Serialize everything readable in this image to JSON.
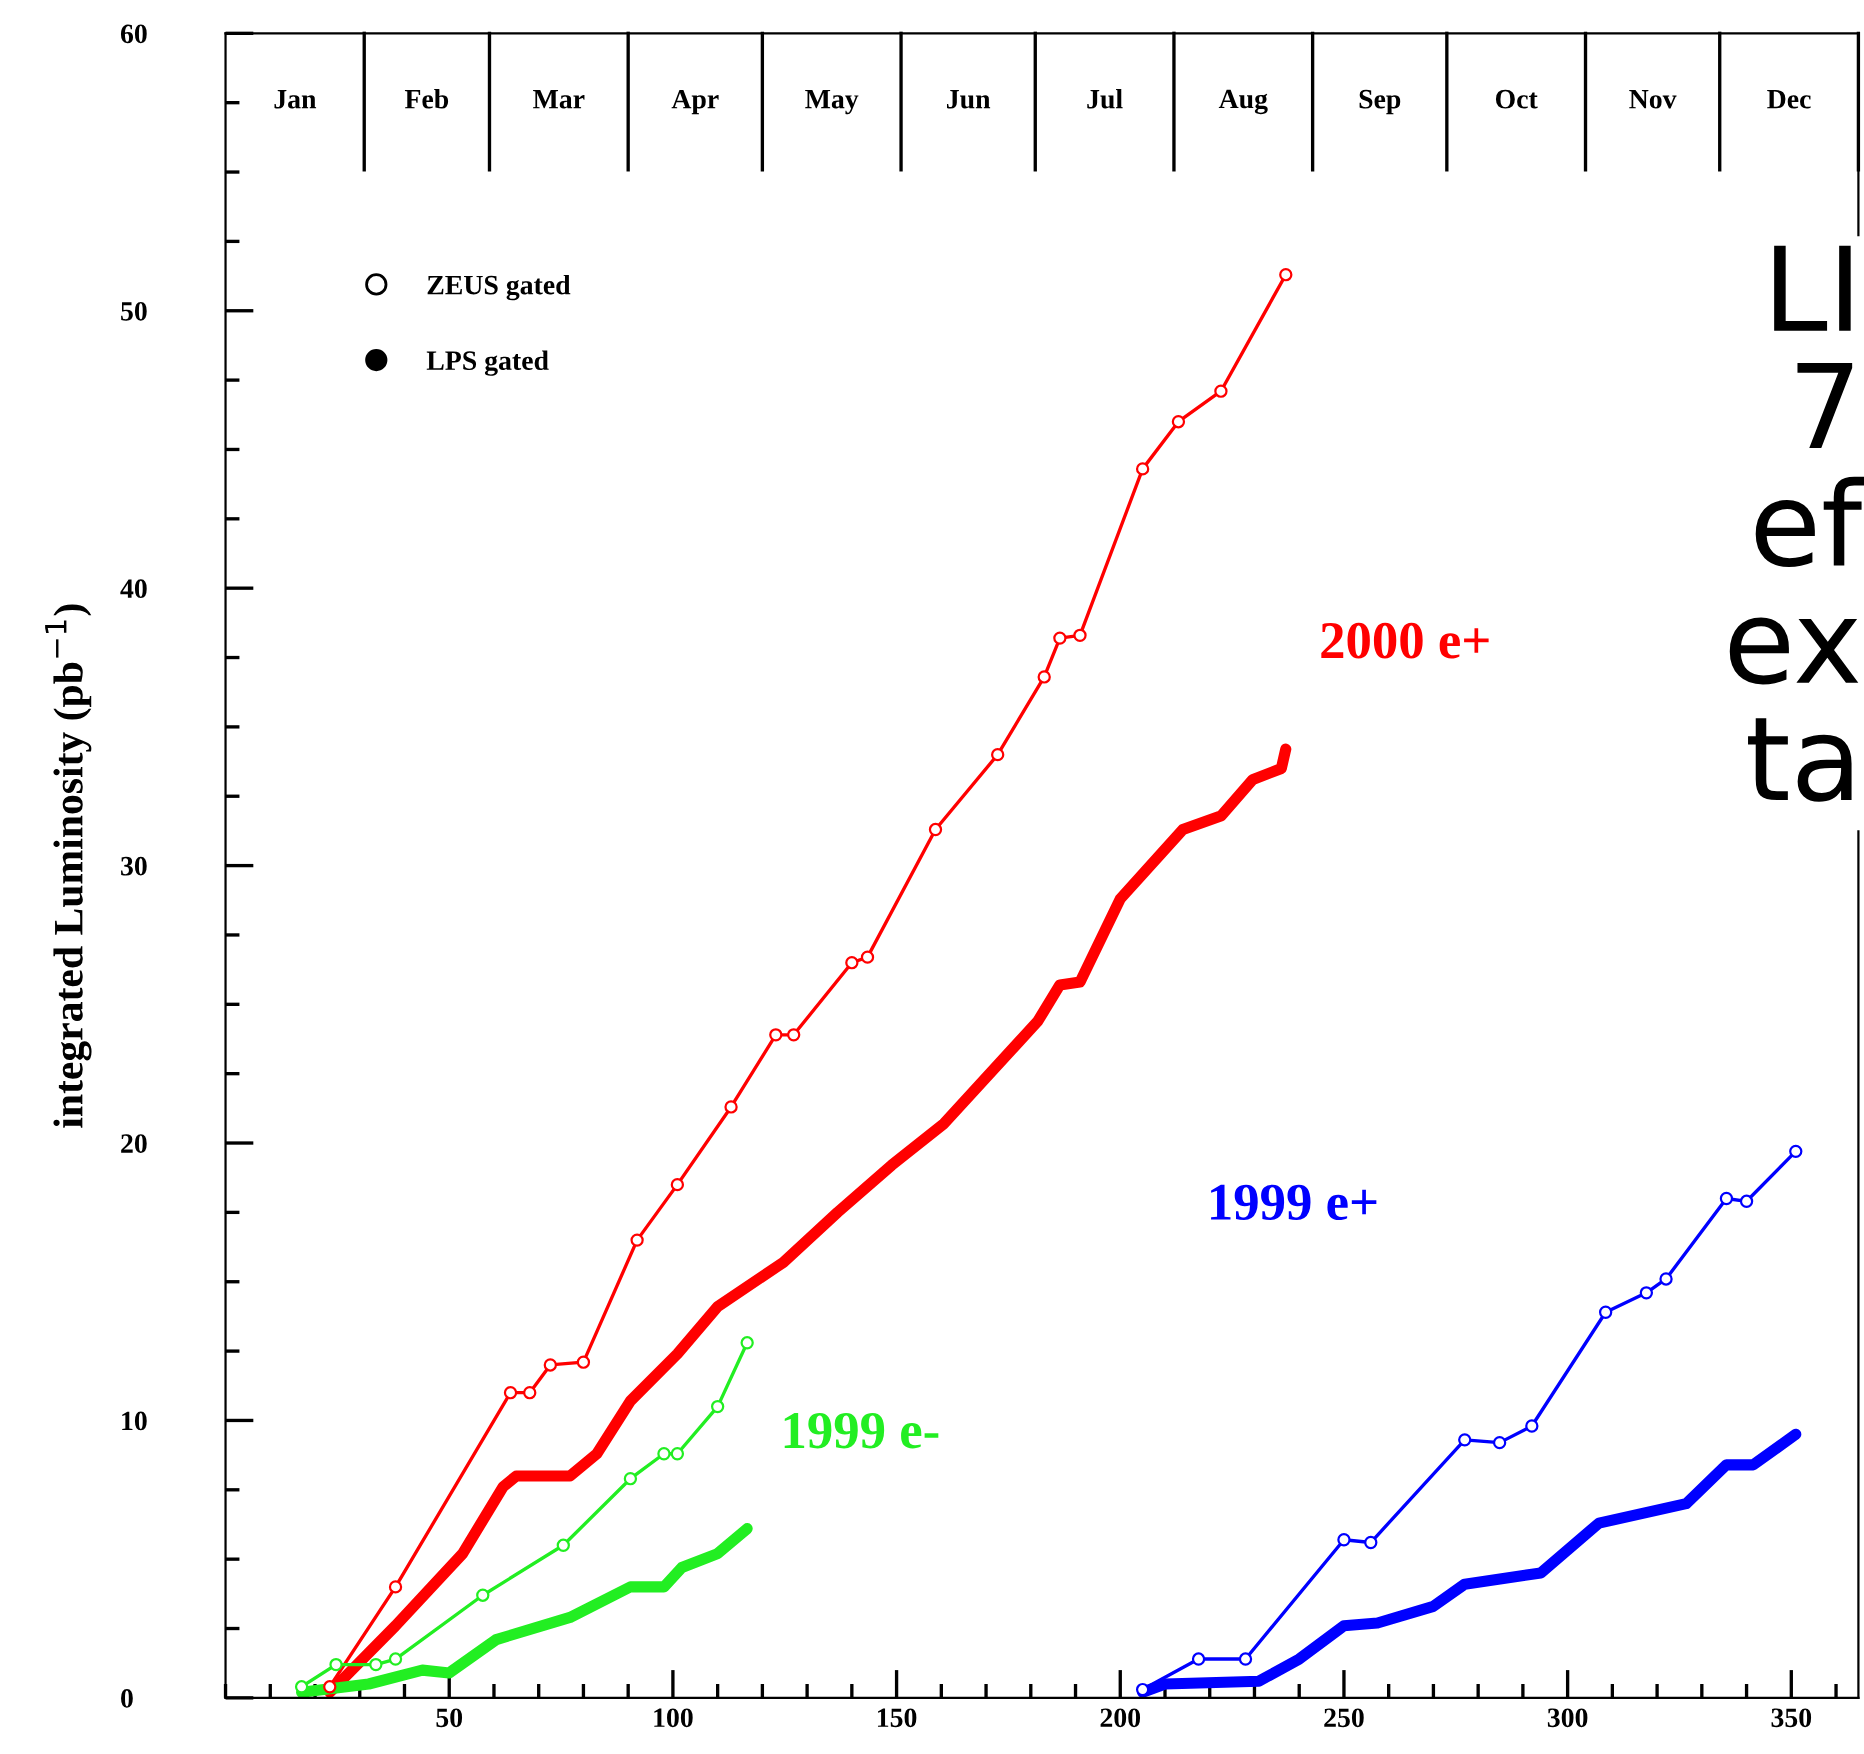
{
  "chart_data": {
    "type": "line",
    "ylabel": "integrated Luminosity (pb$^{−1}$)",
    "xlim": [
      0,
      365
    ],
    "xticks": [
      50,
      100,
      150,
      200,
      250,
      300,
      350
    ],
    "ylim": [
      0,
      60
    ],
    "yticks": [
      0,
      10,
      20,
      30,
      40,
      50,
      60
    ],
    "ref_lines": [
      {
        "axis": "x",
        "value": 31,
        "label": "Jan"
      },
      {
        "axis": "x",
        "value": 59,
        "label": "Feb"
      },
      {
        "axis": "x",
        "value": 90,
        "label": "Mar"
      },
      {
        "axis": "x",
        "value": 120,
        "label": "Apr"
      },
      {
        "axis": "x",
        "value": 151,
        "label": "May"
      },
      {
        "axis": "x",
        "value": 181,
        "label": "Jun"
      },
      {
        "axis": "x",
        "value": 212,
        "label": "Jul"
      },
      {
        "axis": "x",
        "value": 243,
        "label": "Aug"
      },
      {
        "axis": "x",
        "value": 273,
        "label": "Sep"
      },
      {
        "axis": "x",
        "value": 304,
        "label": "Oct"
      },
      {
        "axis": "x",
        "value": 334,
        "label": "Nov"
      },
      {
        "axis": "x",
        "value": 365,
        "label": "Dec"
      }
    ],
    "grid": false,
    "legend": "top left",
    "series": [
      {
        "name": "ZEUS gated",
        "type": "line",
        "marker": "circle",
        "color": "#000000"
      },
      {
        "name": "LPS gated",
        "type": "scatter",
        "marker": "circle",
        "color": "#000000"
      },
      {
        "name": "2000 e+",
        "marker": "circle",
        "color": "#ff0000",
        "x": [
          23.3,
          38,
          63.7,
          68,
          72.6,
          80,
          92,
          101,
          113,
          123,
          127,
          140,
          143.5,
          158.7,
          172.6,
          183,
          186.5,
          191,
          205,
          213,
          222.5,
          237
        ],
        "values": [
          0.4,
          4.0,
          11.0,
          11.0,
          12.0,
          12.1,
          16.5,
          18.5,
          21.3,
          23.9,
          23.9,
          26.5,
          26.7,
          31.3,
          34.0,
          36.8,
          38.2,
          38.3,
          44.3,
          46.0,
          47.1,
          51.3
        ]
      },
      {
        "color": "#ff0000",
        "x": [
          23.3,
          38,
          53,
          62,
          65,
          77,
          83,
          90.5,
          101,
          110,
          124.7,
          136.8,
          148.9,
          160.6,
          181.6,
          186.5,
          191,
          200,
          214,
          222.6,
          229.6,
          236,
          237
        ],
        "values": [
          0.2,
          2.6,
          5.2,
          7.6,
          8.0,
          8.0,
          8.8,
          10.7,
          12.4,
          14.1,
          15.7,
          17.5,
          19.2,
          20.7,
          24.4,
          25.7,
          25.8,
          28.8,
          31.3,
          31.8,
          33.1,
          33.5,
          34.2
        ]
      },
      {
        "name": "1999 e-",
        "marker": "circle",
        "color": "#22ee22",
        "x": [
          17,
          24.7,
          33.6,
          38,
          57.5,
          75.5,
          90.5,
          98,
          101,
          110,
          116.6
        ],
        "values": [
          0.4,
          1.2,
          1.2,
          1.4,
          3.7,
          5.5,
          7.9,
          8.8,
          8.8,
          10.5,
          12.8
        ]
      },
      {
        "color": "#22ee22",
        "x": [
          17,
          32,
          44,
          50,
          60.5,
          77,
          90.5,
          98,
          102,
          110,
          116.6
        ],
        "values": [
          0.2,
          0.5,
          1.0,
          0.9,
          2.1,
          2.9,
          4.0,
          4.0,
          4.7,
          5.2,
          6.1
        ]
      },
      {
        "name": "1999 e+",
        "marker": "circle",
        "color": "#0000ff",
        "x": [
          205,
          217.5,
          228,
          250,
          256,
          277,
          284.8,
          292,
          308.5,
          317.6,
          322,
          335.5,
          340,
          351
        ],
        "values": [
          0.3,
          1.4,
          1.4,
          5.7,
          5.6,
          9.3,
          9.2,
          9.8,
          13.9,
          14.6,
          15.1,
          18.0,
          17.9,
          19.7
        ]
      },
      {
        "color": "#0000ff",
        "x": [
          205,
          210,
          231,
          240,
          250,
          257.5,
          270,
          277,
          294,
          307,
          326.5,
          335.5,
          341.5,
          351
        ],
        "values": [
          0.2,
          0.5,
          0.6,
          1.4,
          2.6,
          2.7,
          3.3,
          4.1,
          4.5,
          6.3,
          7.0,
          8.4,
          8.4,
          9.5
        ]
      }
    ],
    "annotations": [
      "LI\n7\nef\nex\nta"
    ]
  }
}
